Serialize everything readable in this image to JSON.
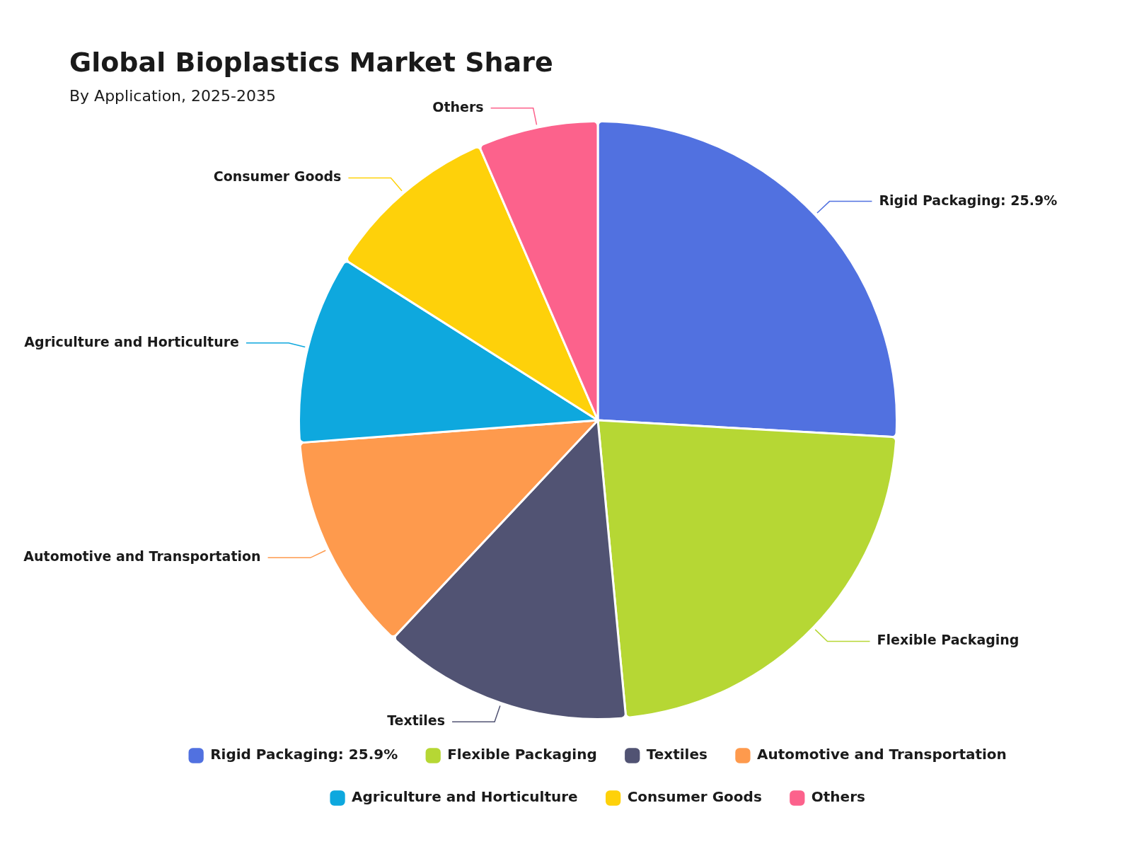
{
  "chart_data": {
    "type": "pie",
    "title": "Global Bioplastics Market Share",
    "subtitle": "By Application, 2025-2035",
    "categories": [
      "Rigid Packaging: 25.9%",
      "Flexible Packaging",
      "Textiles",
      "Automotive and Transportation",
      "Agriculture and Horticulture",
      "Consumer Goods",
      "Others"
    ],
    "values": [
      25.9,
      22.6,
      13.5,
      11.8,
      10.2,
      9.5,
      6.5
    ],
    "colors": [
      "#5171e0",
      "#b6d734",
      "#515373",
      "#fe9a4d",
      "#0ea8de",
      "#fed10a",
      "#fc628c"
    ],
    "legend": "bottom"
  }
}
